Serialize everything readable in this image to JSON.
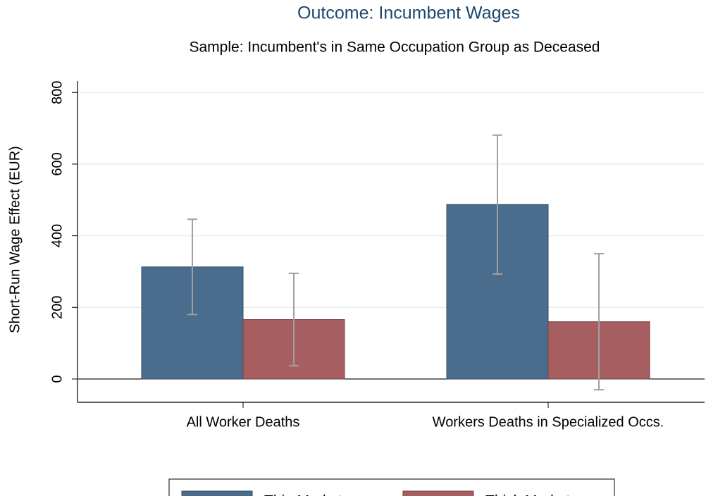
{
  "chart_data": {
    "type": "bar",
    "title": "Outcome: Incumbent Wages",
    "subtitle": "Sample: Incumbent's in Same Occupation Group as Deceased",
    "y_label": "Short-Run Wage Effect (EUR)",
    "categories": [
      "All Worker Deaths",
      "Workers Deaths in Specialized Occs."
    ],
    "series": [
      {
        "name": "Thin Markets",
        "color": "#4a6d8d",
        "values": [
          313,
          487
        ],
        "errors": [
          133,
          194
        ]
      },
      {
        "name": "Thick Markets",
        "color": "#a65e60",
        "values": [
          166,
          160
        ],
        "errors": [
          129,
          190
        ]
      }
    ],
    "ylim": [
      -65,
      832
    ],
    "yticks": [
      0,
      200,
      400,
      600,
      800
    ],
    "grid": true
  }
}
